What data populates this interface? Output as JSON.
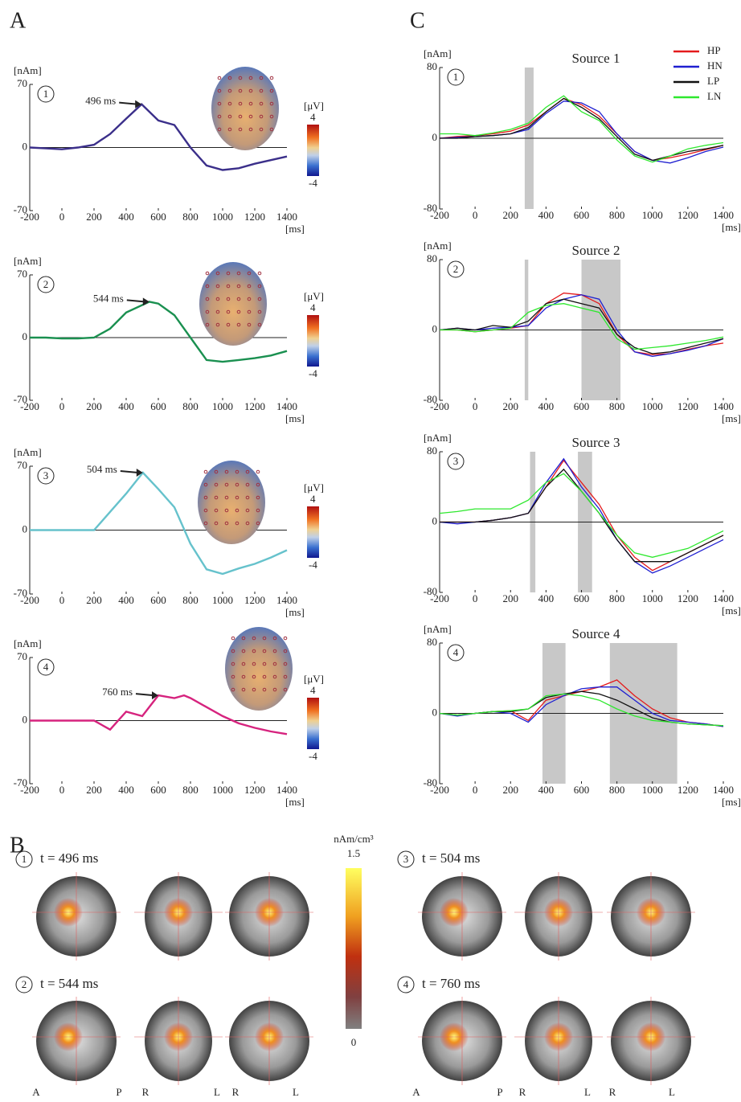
{
  "panel_labels": [
    "A",
    "B",
    "C"
  ],
  "chart_data": [
    {
      "type": "line",
      "number": "1",
      "ylabel": "[nAm]",
      "xlabel": "[ms]",
      "annotation": "496 ms",
      "xlim": [
        -200,
        1400
      ],
      "xticks": [
        -200,
        0,
        200,
        400,
        600,
        800,
        1000,
        1200,
        1400
      ],
      "ylim": [
        -70,
        70
      ],
      "yticks": [
        -70,
        0,
        70
      ],
      "x": [
        -200,
        -100,
        0,
        100,
        200,
        300,
        400,
        496,
        600,
        700,
        800,
        900,
        1000,
        1100,
        1200,
        1300,
        1400
      ],
      "series": [
        {
          "color": "#3b2f8a",
          "values": [
            0,
            -1,
            -2,
            0,
            3,
            15,
            32,
            48,
            30,
            25,
            0,
            -20,
            -25,
            -23,
            -18,
            -14,
            -10
          ]
        }
      ],
      "colorbar": {
        "label": "[μV]",
        "max": 4,
        "min": -4
      }
    },
    {
      "type": "line",
      "number": "2",
      "ylabel": "[nAm]",
      "xlabel": "[ms]",
      "annotation": "544 ms",
      "xlim": [
        -200,
        1400
      ],
      "xticks": [
        -200,
        0,
        200,
        400,
        600,
        800,
        1000,
        1200,
        1400
      ],
      "ylim": [
        -70,
        70
      ],
      "yticks": [
        -70,
        0,
        70
      ],
      "x": [
        -200,
        -100,
        0,
        100,
        200,
        300,
        400,
        544,
        600,
        700,
        800,
        900,
        1000,
        1100,
        1200,
        1300,
        1400
      ],
      "series": [
        {
          "color": "#1a9050",
          "values": [
            0,
            0,
            -1,
            -1,
            0,
            10,
            28,
            40,
            38,
            25,
            0,
            -25,
            -27,
            -25,
            -23,
            -20,
            -15
          ]
        }
      ],
      "colorbar": {
        "label": "[μV]",
        "max": 4,
        "min": -4
      }
    },
    {
      "type": "line",
      "number": "3",
      "ylabel": "[nAm]",
      "xlabel": "[ms]",
      "annotation": "504 ms",
      "xlim": [
        -200,
        1400
      ],
      "xticks": [
        -200,
        0,
        200,
        400,
        600,
        800,
        1000,
        1200,
        1400
      ],
      "ylim": [
        -70,
        70
      ],
      "yticks": [
        -70,
        0,
        70
      ],
      "x": [
        -200,
        -100,
        0,
        100,
        200,
        300,
        400,
        504,
        600,
        700,
        800,
        900,
        1000,
        1100,
        1200,
        1300,
        1400
      ],
      "series": [
        {
          "color": "#66c2cc",
          "values": [
            0,
            0,
            0,
            0,
            0,
            20,
            40,
            63,
            45,
            25,
            -15,
            -43,
            -48,
            -42,
            -37,
            -30,
            -22
          ]
        }
      ],
      "colorbar": {
        "label": "[μV]",
        "max": 4,
        "min": -4
      }
    },
    {
      "type": "line",
      "number": "4",
      "ylabel": "[nAm]",
      "xlabel": "[ms]",
      "annotation": "760 ms",
      "xlim": [
        -200,
        1400
      ],
      "xticks": [
        -200,
        0,
        200,
        400,
        600,
        800,
        1000,
        1200,
        1400
      ],
      "ylim": [
        -70,
        70
      ],
      "yticks": [
        -70,
        0,
        70
      ],
      "x": [
        -200,
        -100,
        0,
        100,
        200,
        300,
        400,
        500,
        600,
        700,
        760,
        800,
        900,
        1000,
        1100,
        1200,
        1300,
        1400
      ],
      "series": [
        {
          "color": "#d6237e",
          "values": [
            0,
            0,
            0,
            0,
            0,
            -10,
            10,
            5,
            28,
            25,
            28,
            25,
            15,
            5,
            -3,
            -8,
            -12,
            -15
          ]
        }
      ],
      "colorbar": {
        "label": "[μV]",
        "max": 4,
        "min": -4
      }
    },
    {
      "type": "line",
      "number": "1",
      "title": "Source 1",
      "ylabel": "[nAm]",
      "xlabel": "[ms]",
      "legend": "upper right",
      "xlim": [
        -200,
        1400
      ],
      "xticks": [
        -200,
        0,
        200,
        400,
        600,
        800,
        1000,
        1200,
        1400
      ],
      "ylim": [
        -80,
        80
      ],
      "yticks": [
        -80,
        0,
        80
      ],
      "shaded": [
        [
          280,
          330
        ]
      ],
      "x": [
        -200,
        -100,
        0,
        100,
        200,
        300,
        400,
        500,
        600,
        700,
        800,
        900,
        1000,
        1100,
        1200,
        1300,
        1400
      ],
      "series": [
        {
          "name": "HP",
          "color": "#e41a1c",
          "values": [
            0,
            2,
            3,
            5,
            8,
            15,
            30,
            45,
            38,
            25,
            5,
            -15,
            -25,
            -22,
            -18,
            -13,
            -8
          ]
        },
        {
          "name": "HN",
          "color": "#1f1fd0",
          "values": [
            0,
            1,
            2,
            3,
            5,
            10,
            28,
            42,
            40,
            30,
            5,
            -15,
            -25,
            -28,
            -22,
            -15,
            -10
          ]
        },
        {
          "name": "LP",
          "color": "#111111",
          "values": [
            0,
            0,
            2,
            3,
            5,
            12,
            30,
            45,
            35,
            22,
            2,
            -18,
            -25,
            -20,
            -15,
            -12,
            -8
          ]
        },
        {
          "name": "LN",
          "color": "#2ee82e",
          "values": [
            5,
            5,
            3,
            6,
            10,
            17,
            35,
            48,
            30,
            20,
            -2,
            -20,
            -27,
            -20,
            -12,
            -8,
            -5
          ]
        }
      ]
    },
    {
      "type": "line",
      "number": "2",
      "title": "Source 2",
      "ylabel": "[nAm]",
      "xlabel": "[ms]",
      "xlim": [
        -200,
        1400
      ],
      "xticks": [
        -200,
        0,
        200,
        400,
        600,
        800,
        1000,
        1200,
        1400
      ],
      "ylim": [
        -80,
        80
      ],
      "yticks": [
        -80,
        0,
        80
      ],
      "shaded": [
        [
          280,
          300
        ],
        [
          600,
          820
        ]
      ],
      "x": [
        -200,
        -100,
        0,
        100,
        200,
        300,
        400,
        500,
        600,
        700,
        800,
        900,
        1000,
        1100,
        1200,
        1300,
        1400
      ],
      "series": [
        {
          "name": "HP",
          "color": "#e41a1c",
          "values": [
            0,
            0,
            -2,
            0,
            2,
            5,
            30,
            42,
            40,
            30,
            -5,
            -25,
            -28,
            -27,
            -22,
            -18,
            -15
          ]
        },
        {
          "name": "HN",
          "color": "#1f1fd0",
          "values": [
            0,
            2,
            0,
            2,
            3,
            5,
            25,
            35,
            40,
            35,
            0,
            -25,
            -30,
            -27,
            -23,
            -18,
            -10
          ]
        },
        {
          "name": "LP",
          "color": "#111111",
          "values": [
            0,
            2,
            0,
            5,
            3,
            10,
            30,
            35,
            30,
            25,
            -5,
            -20,
            -27,
            -25,
            -20,
            -15,
            -10
          ]
        },
        {
          "name": "LN",
          "color": "#2ee82e",
          "values": [
            0,
            0,
            -2,
            0,
            2,
            20,
            28,
            30,
            25,
            20,
            -10,
            -22,
            -20,
            -18,
            -15,
            -12,
            -8
          ]
        }
      ]
    },
    {
      "type": "line",
      "number": "3",
      "title": "Source 3",
      "ylabel": "[nAm]",
      "xlabel": "[ms]",
      "xlim": [
        -200,
        1400
      ],
      "xticks": [
        -200,
        0,
        200,
        400,
        600,
        800,
        1000,
        1200,
        1400
      ],
      "ylim": [
        -80,
        80
      ],
      "yticks": [
        -80,
        0,
        80
      ],
      "shaded": [
        [
          310,
          340
        ],
        [
          580,
          660
        ]
      ],
      "x": [
        -200,
        -100,
        0,
        100,
        200,
        300,
        400,
        500,
        600,
        700,
        800,
        900,
        1000,
        1100,
        1200,
        1300,
        1400
      ],
      "series": [
        {
          "name": "HP",
          "color": "#e41a1c",
          "values": [
            0,
            0,
            0,
            2,
            5,
            10,
            40,
            70,
            45,
            20,
            -15,
            -40,
            -55,
            -45,
            -35,
            -25,
            -15
          ]
        },
        {
          "name": "HN",
          "color": "#1f1fd0",
          "values": [
            0,
            -2,
            0,
            2,
            5,
            10,
            45,
            72,
            40,
            15,
            -20,
            -45,
            -58,
            -50,
            -40,
            -30,
            -20
          ]
        },
        {
          "name": "LP",
          "color": "#111111",
          "values": [
            0,
            0,
            0,
            2,
            5,
            10,
            40,
            60,
            35,
            10,
            -20,
            -45,
            -45,
            -45,
            -35,
            -25,
            -15
          ]
        },
        {
          "name": "LN",
          "color": "#2ee82e",
          "values": [
            10,
            12,
            15,
            15,
            15,
            25,
            45,
            55,
            35,
            10,
            -15,
            -35,
            -40,
            -35,
            -30,
            -20,
            -10
          ]
        }
      ]
    },
    {
      "type": "line",
      "number": "4",
      "title": "Source 4",
      "ylabel": "[nAm]",
      "xlabel": "[ms]",
      "xlim": [
        -200,
        1400
      ],
      "xticks": [
        -200,
        0,
        200,
        400,
        600,
        800,
        1000,
        1200,
        1400
      ],
      "ylim": [
        -80,
        80
      ],
      "yticks": [
        -80,
        0,
        80
      ],
      "shaded": [
        [
          380,
          510
        ],
        [
          760,
          1140
        ]
      ],
      "x": [
        -200,
        -100,
        0,
        100,
        200,
        300,
        400,
        500,
        600,
        700,
        800,
        900,
        1000,
        1100,
        1200,
        1300,
        1400
      ],
      "series": [
        {
          "name": "HP",
          "color": "#e41a1c",
          "values": [
            0,
            -2,
            0,
            2,
            3,
            -8,
            15,
            20,
            25,
            30,
            38,
            20,
            5,
            -5,
            -10,
            -12,
            -15
          ]
        },
        {
          "name": "HN",
          "color": "#1f1fd0",
          "values": [
            0,
            -3,
            0,
            2,
            0,
            -10,
            10,
            20,
            28,
            30,
            30,
            15,
            0,
            -8,
            -10,
            -12,
            -15
          ]
        },
        {
          "name": "LP",
          "color": "#111111",
          "values": [
            0,
            -2,
            0,
            2,
            2,
            5,
            18,
            22,
            25,
            22,
            15,
            5,
            -5,
            -10,
            -12,
            -13,
            -14
          ]
        },
        {
          "name": "LN",
          "color": "#2ee82e",
          "values": [
            0,
            -2,
            0,
            2,
            3,
            5,
            20,
            22,
            20,
            15,
            5,
            -3,
            -8,
            -10,
            -12,
            -13,
            -14
          ]
        }
      ]
    }
  ],
  "panel_b": {
    "colorbar": {
      "unit": "nAm/cm³",
      "max": 1.5,
      "min": 0
    },
    "views": [
      {
        "number": "1",
        "time": "t = 496 ms"
      },
      {
        "number": "2",
        "time": "t = 544 ms"
      },
      {
        "number": "3",
        "time": "t = 504 ms"
      },
      {
        "number": "4",
        "time": "t = 760 ms"
      }
    ],
    "orientation_labels": [
      [
        "A",
        "P",
        "R",
        "L",
        "R",
        "L"
      ],
      [
        "A",
        "P",
        "R",
        "L",
        "R",
        "L"
      ]
    ]
  }
}
